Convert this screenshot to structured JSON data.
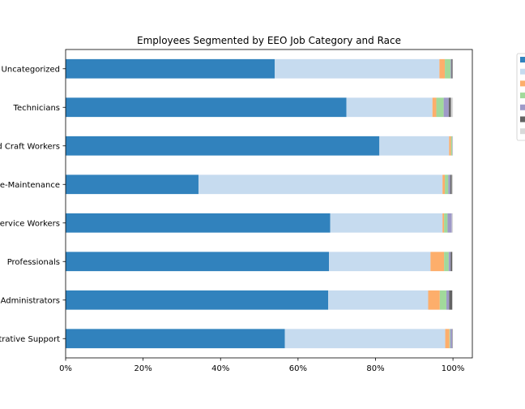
{
  "chart_data": {
    "type": "bar",
    "orientation": "horizontal",
    "stacked": true,
    "normalized": true,
    "title": "Employees Segmented by EEO Job Category and Race",
    "xlabel": "",
    "ylabel": "",
    "xlim": [
      0,
      1.05
    ],
    "xticks": [
      0,
      0.2,
      0.4,
      0.6,
      0.8,
      1.0
    ],
    "xtick_labels": [
      "0%",
      "20%",
      "40%",
      "60%",
      "80%",
      "100%"
    ],
    "grid": false,
    "legend_position": "right",
    "categories": [
      "Uncategorized",
      "Technicians",
      "Skilled Craft Workers",
      "Service-Maintenance",
      "Protective Service Workers",
      "Professionals",
      "Officials and Administrators",
      "Administrative Support"
    ],
    "category_labels_visible": [
      "Uncategorized",
      "Technicians",
      "d Craft Workers",
      "e-Maintenance",
      "ervice Workers",
      "Professionals",
      "Administrators",
      "trative Support"
    ],
    "series": [
      {
        "color": "#3182bd",
        "values": [
          0.54,
          0.725,
          0.81,
          0.343,
          0.683,
          0.68,
          0.678,
          0.566
        ]
      },
      {
        "color": "#c6dbef",
        "values": [
          0.425,
          0.222,
          0.18,
          0.63,
          0.29,
          0.262,
          0.258,
          0.414
        ]
      },
      {
        "color": "#fdae6b",
        "values": [
          0.014,
          0.01,
          0.005,
          0.006,
          0.004,
          0.035,
          0.03,
          0.011
        ]
      },
      {
        "color": "#a1d99b",
        "values": [
          0.015,
          0.019,
          0.003,
          0.009,
          0.009,
          0.012,
          0.017,
          0.002
        ]
      },
      {
        "color": "#9e9ac8",
        "values": [
          0.002,
          0.013,
          0.001,
          0.005,
          0.011,
          0.005,
          0.007,
          0.005
        ]
      },
      {
        "color": "#636363",
        "values": [
          0.003,
          0.006,
          0.0,
          0.004,
          0.0,
          0.004,
          0.008,
          0.001
        ]
      },
      {
        "color": "#d9d9d9",
        "values": [
          0.001,
          0.005,
          0.001,
          0.003,
          0.003,
          0.002,
          0.002,
          0.001
        ]
      }
    ]
  }
}
